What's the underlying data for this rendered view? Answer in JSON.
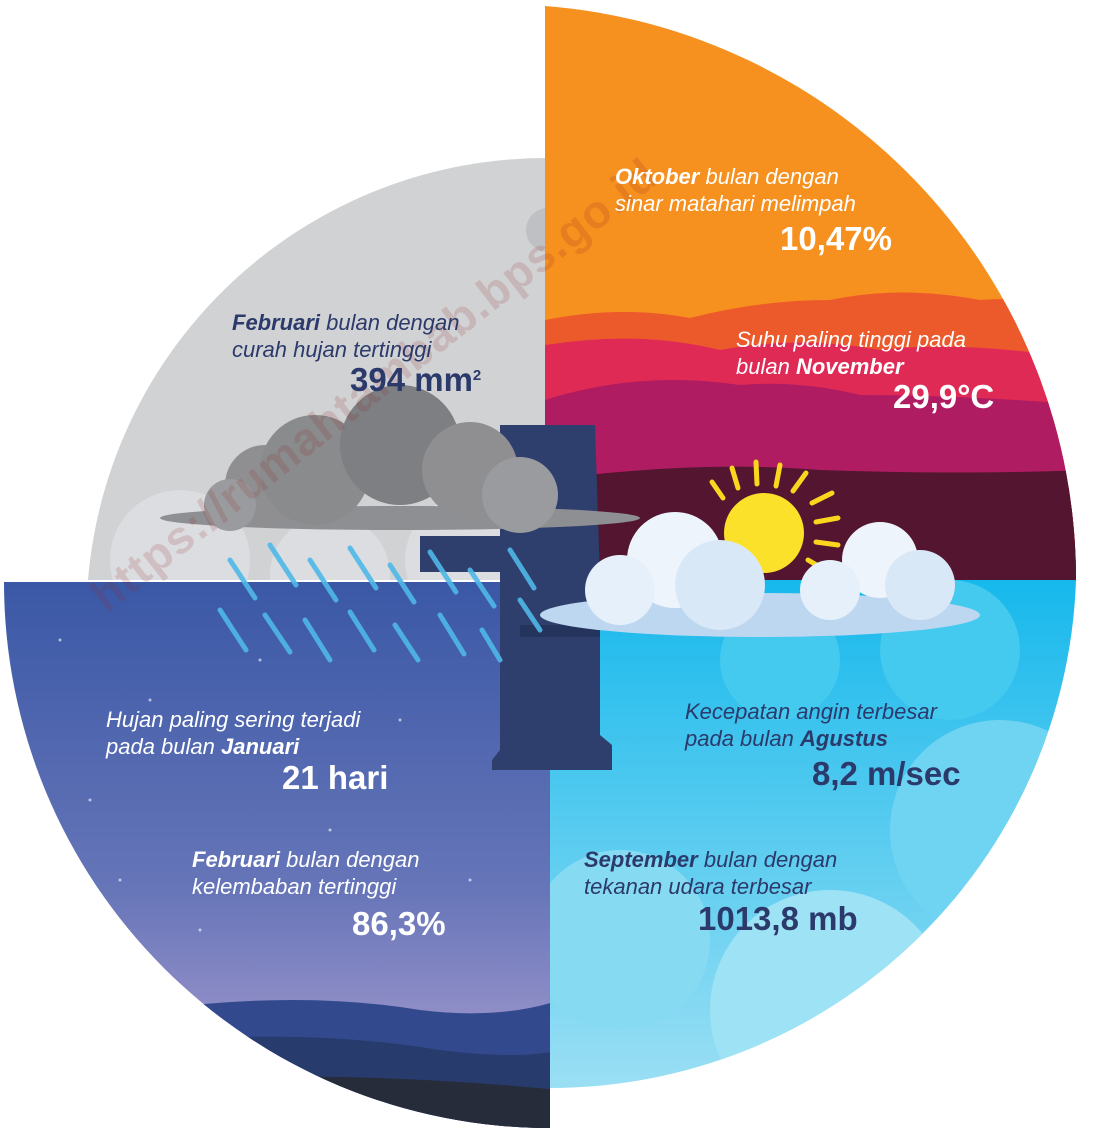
{
  "watermark": "https://rumahtambab.bps.go.id",
  "panels": {
    "rainfall": {
      "month": "Februari",
      "line1_rest": " bulan dengan",
      "line2": "curah hujan tertinggi",
      "value": "394 mm",
      "value_sup": "2",
      "color": "#d1d2d4"
    },
    "sunshine": {
      "month": "Oktober",
      "line1_rest": " bulan dengan",
      "line2": "sinar matahari melimpah",
      "value": "10,47%",
      "color": "#f6901e"
    },
    "temperature": {
      "line1": "Suhu paling tinggi pada",
      "line2_pre": "bulan ",
      "month": "November",
      "value": "29,9°C"
    },
    "rain_days": {
      "line1": "Hujan paling sering terjadi",
      "line2_pre": "pada bulan ",
      "month": "Januari",
      "value": "21 hari",
      "color": "#3e5ba8"
    },
    "humidity": {
      "month": "Februari",
      "line1_rest": " bulan dengan",
      "line2": "kelembaban tertinggi",
      "value": "86,3%"
    },
    "wind": {
      "line1": "Kecepatan angin terbesar",
      "line2_pre": "pada bulan ",
      "month": "Agustus",
      "value": "8,2 m/sec",
      "color": "#29c4ee"
    },
    "pressure": {
      "month": "September",
      "line1_rest": " bulan dengan",
      "line2": "tekanan udara terbesar",
      "value": "1013,8 mb"
    }
  }
}
